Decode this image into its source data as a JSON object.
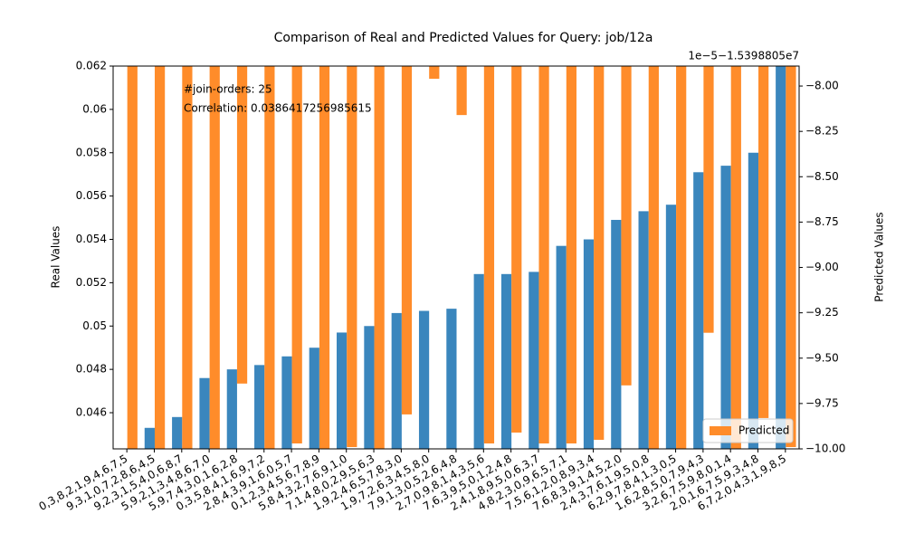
{
  "chart_data": {
    "type": "bar",
    "title": "Comparison of Real and Predicted Values for Query: job/12a",
    "y_label": "Real Values",
    "y2_label": "Predicted Values",
    "y2_offset_label": "1e−5−1.5398805e7",
    "annotations": [
      "#join-orders: 25",
      "Correlation: 0.0386417256985615"
    ],
    "categories": [
      "0,3,8,2,1,9,4,6,7,5",
      "9,3,1,0,7,2,8,6,4,5",
      "9,2,3,1,5,4,0,6,8,7",
      "5,9,2,1,3,4,8,6,7,0",
      "5,9,7,4,3,0,1,6,2,8",
      "0,3,5,8,4,1,6,9,7,2",
      "2,8,4,3,9,1,6,0,5,7",
      "0,1,2,3,4,5,6,7,8,9",
      "5,8,4,3,2,7,6,9,1,0",
      "7,1,4,8,0,2,9,5,6,3",
      "1,9,2,4,6,5,7,8,3,0",
      "1,9,7,2,6,3,4,5,8,0",
      "7,9,1,3,0,5,2,6,4,8",
      "2,7,0,9,8,1,4,3,5,6",
      "7,6,3,9,5,0,1,2,4,8",
      "2,4,1,8,9,5,0,6,3,7",
      "4,8,2,3,0,9,6,5,7,1",
      "7,5,6,1,2,0,8,9,3,4",
      "7,6,8,3,9,1,4,5,2,0",
      "2,4,3,7,6,1,9,5,0,8",
      "6,2,9,7,8,4,1,3,0,5",
      "1,6,2,8,5,0,7,9,4,3",
      "3,2,6,7,5,9,8,0,1,4",
      "2,0,1,6,7,5,9,3,4,8",
      "6,7,2,0,4,3,1,9,8,5"
    ],
    "series": [
      {
        "name": "Real",
        "color": "#3a86bd",
        "values": [
          0.044,
          0.0453,
          0.0458,
          0.0476,
          0.048,
          0.0482,
          0.0486,
          0.049,
          0.0497,
          0.05,
          0.0506,
          0.0507,
          0.0508,
          0.0524,
          0.0524,
          0.0525,
          0.0537,
          0.054,
          0.0549,
          0.0553,
          0.0556,
          0.0571,
          0.0574,
          0.058,
          0.0625
        ]
      },
      {
        "name": "Predicted",
        "color": "#ff8c2a",
        "axis": "y2",
        "values": [
          -10.0,
          -10.0,
          -10.0,
          -10.0,
          -9.64,
          -10.0,
          -9.97,
          -10.0,
          -9.99,
          -10.1,
          -9.81,
          -7.96,
          -8.16,
          -9.97,
          -9.91,
          -9.97,
          -9.97,
          -9.95,
          -9.65,
          -10.0,
          -10.0,
          -9.36,
          -10.0,
          -9.83,
          -9.99
        ]
      }
    ],
    "ylim": [
      0.04433,
      0.062
    ],
    "yticks": [
      0.046,
      0.048,
      0.05,
      0.052,
      0.054,
      0.056,
      0.058,
      0.06,
      0.062
    ],
    "y2lim": [
      -10.0,
      -7.89
    ],
    "y2ticks": [
      {
        "value": -8,
        "label": "−8.00"
      },
      {
        "value": -8.25,
        "label": "−8.25"
      },
      {
        "value": -8.5,
        "label": "−8.50"
      },
      {
        "value": -8.75,
        "label": "−8.75"
      },
      {
        "value": -9,
        "label": "−9.00"
      },
      {
        "value": -9.25,
        "label": "−9.25"
      },
      {
        "value": -9.5,
        "label": "−9.50"
      },
      {
        "value": -9.75,
        "label": "−9.75"
      },
      {
        "value": -10,
        "label": "−10.00"
      }
    ],
    "legend": "lower right"
  }
}
